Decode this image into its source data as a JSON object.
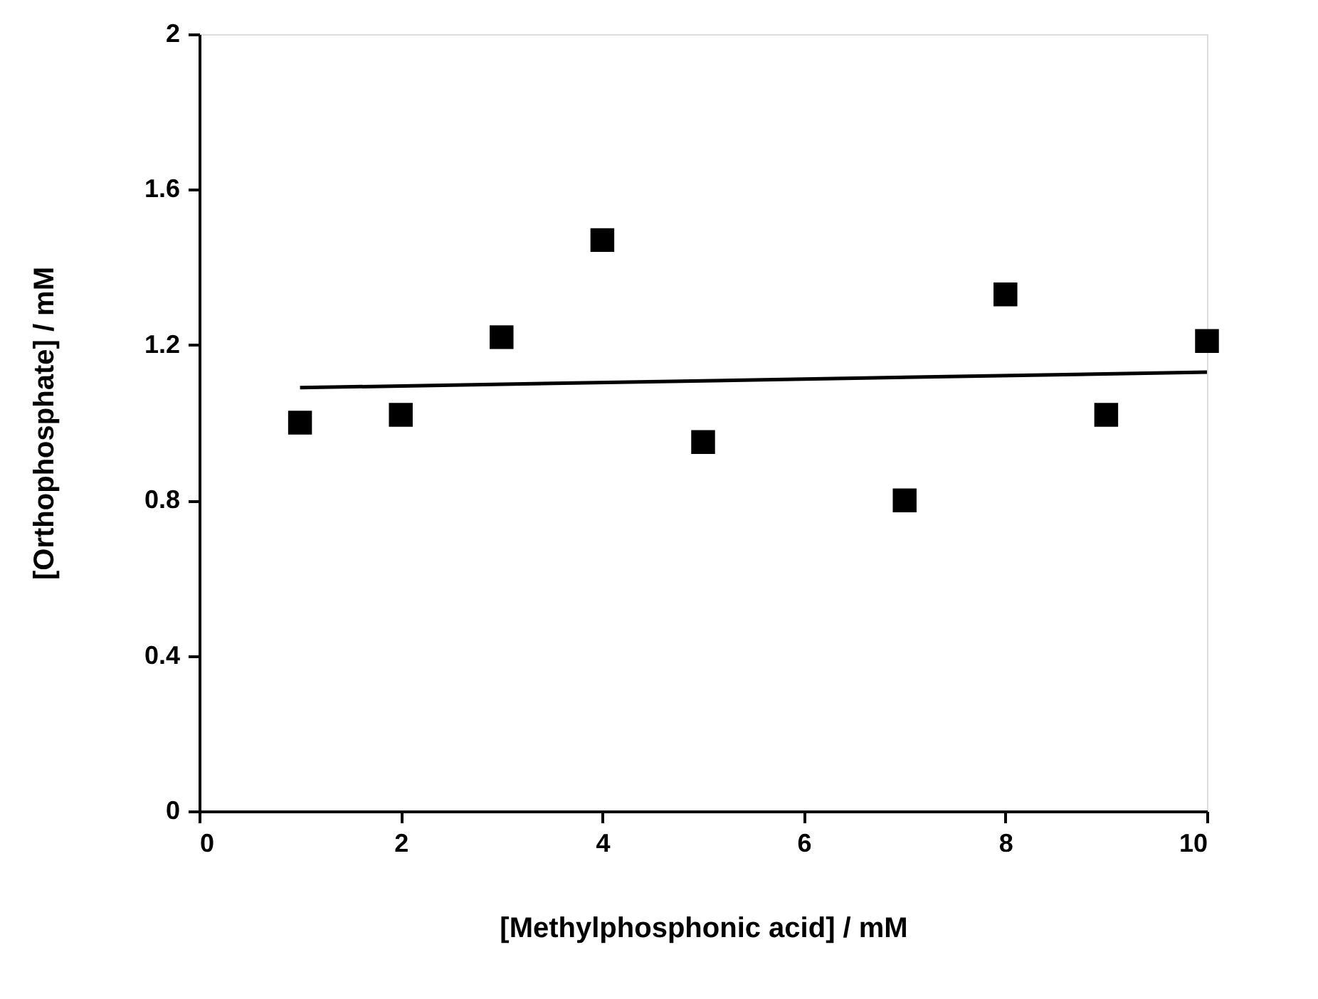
{
  "chart_data": {
    "type": "scatter",
    "xlabel": "[Methylphosphonic acid] / mM",
    "ylabel": "[Orthophosphate] / mM",
    "x": [
      1,
      2,
      3,
      4,
      5,
      7,
      8,
      9,
      10
    ],
    "series": [
      {
        "color": "#000000",
        "marker": "square",
        "values": [
          1.0,
          1.02,
          1.22,
          1.47,
          0.95,
          0.8,
          1.33,
          1.02,
          1.21
        ]
      },
      {
        "type": "line",
        "color": "#000000",
        "x": [
          1,
          10
        ],
        "values": [
          1.09,
          1.13
        ],
        "line_style": "solid"
      }
    ],
    "xlim": [
      0,
      10
    ],
    "xticks": [
      0,
      2,
      4,
      6,
      8,
      10
    ],
    "ylim": [
      0,
      2
    ],
    "yticks": [
      0,
      0.4,
      0.8,
      1.2,
      1.6,
      2
    ],
    "grid": false
  }
}
